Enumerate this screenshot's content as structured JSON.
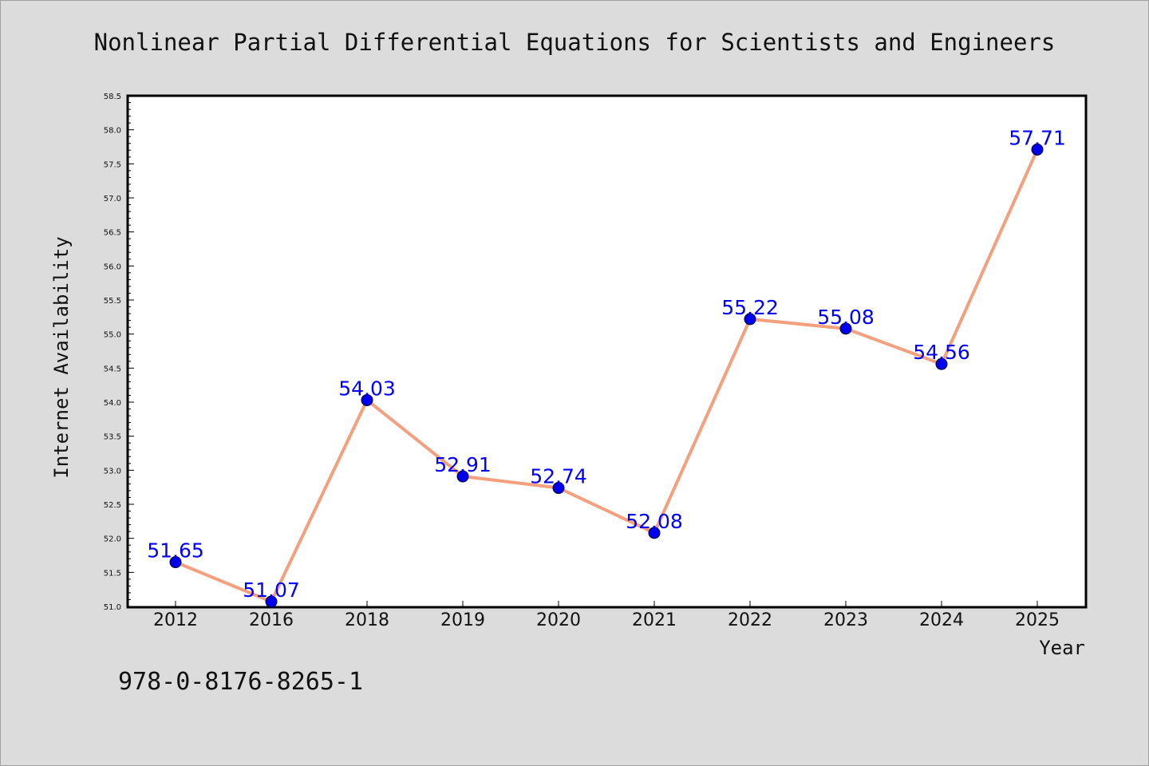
{
  "chart_data": {
    "type": "line",
    "title": "Nonlinear Partial Differential Equations for Scientists and Engineers",
    "xlabel": "Year",
    "ylabel": "Internet Availability",
    "categories": [
      "2012",
      "2016",
      "2018",
      "2019",
      "2020",
      "2021",
      "2022",
      "2023",
      "2024",
      "2025"
    ],
    "series": [
      {
        "values": [
          51.65,
          51.07,
          54.03,
          52.91,
          52.74,
          52.08,
          55.22,
          55.08,
          54.56,
          57.71
        ],
        "data_labels": [
          "51.65",
          "51.07",
          "54.03",
          "52.91",
          "52.74",
          "52.08",
          "55.22",
          "55.08",
          "54.56",
          "57.71"
        ],
        "line_color": "#f4a07e",
        "marker_color": "#0000ee",
        "label_color": "#0000ff"
      }
    ],
    "ylim": [
      51.0,
      58.5
    ],
    "yticks": [
      "51.0",
      "51.5",
      "52.0",
      "52.5",
      "53.0",
      "53.5",
      "54.0",
      "54.5",
      "55.0",
      "55.5",
      "56.0",
      "56.5",
      "57.0",
      "57.5",
      "58.0",
      "58.5"
    ],
    "grid": false,
    "legend": "none"
  },
  "annotation": {
    "isbn": "978-0-8176-8265-1"
  }
}
